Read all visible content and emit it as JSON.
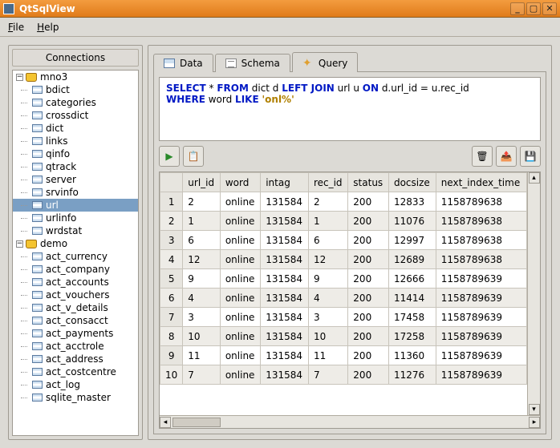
{
  "window": {
    "title": "QtSqlView"
  },
  "menu": {
    "file": "File",
    "help": "Help"
  },
  "connections": {
    "header": "Connections",
    "dbs": [
      {
        "name": "mno3",
        "tables": [
          "bdict",
          "categories",
          "crossdict",
          "dict",
          "links",
          "qinfo",
          "qtrack",
          "server",
          "srvinfo",
          "url",
          "urlinfo",
          "wrdstat"
        ],
        "selected": "url"
      },
      {
        "name": "demo",
        "tables": [
          "act_currency",
          "act_company",
          "act_accounts",
          "act_vouchers",
          "act_v_details",
          "act_consacct",
          "act_payments",
          "act_acctrole",
          "act_address",
          "act_costcentre",
          "act_log",
          "sqlite_master"
        ]
      }
    ]
  },
  "tabs": {
    "data": "Data",
    "schema": "Schema",
    "query": "Query",
    "active": "query"
  },
  "query": {
    "sql_parts": [
      {
        "t": "kw",
        "v": "SELECT"
      },
      {
        "t": "p",
        "v": " * "
      },
      {
        "t": "kw",
        "v": "FROM"
      },
      {
        "t": "p",
        "v": " dict d "
      },
      {
        "t": "kw",
        "v": "LEFT JOIN"
      },
      {
        "t": "p",
        "v": " url u "
      },
      {
        "t": "kw",
        "v": "ON"
      },
      {
        "t": "p",
        "v": " d.url_id = u.rec_id"
      },
      {
        "t": "br"
      },
      {
        "t": "p",
        "v": " "
      },
      {
        "t": "kw",
        "v": "WHERE"
      },
      {
        "t": "p",
        "v": " word "
      },
      {
        "t": "kw",
        "v": "LIKE"
      },
      {
        "t": "p",
        "v": " "
      },
      {
        "t": "str",
        "v": "'onl%'"
      }
    ]
  },
  "toolbar": {
    "run_icon": "▶",
    "run_color": "#2a8a2a",
    "copy_icon": "📋",
    "delete_icon": "🗑",
    "delete_color": "#2a7ac0",
    "export_icon": "📤",
    "export_color": "#d09020",
    "save_icon": "💾",
    "save_color": "#3a6aa0"
  },
  "grid": {
    "columns": [
      "url_id",
      "word",
      "intag",
      "rec_id",
      "status",
      "docsize",
      "next_index_time"
    ],
    "rows": [
      [
        "1",
        "2",
        "online",
        "131584",
        "2",
        "200",
        "12833",
        "1158789638"
      ],
      [
        "2",
        "1",
        "online",
        "131584",
        "1",
        "200",
        "11076",
        "1158789638"
      ],
      [
        "3",
        "6",
        "online",
        "131584",
        "6",
        "200",
        "12997",
        "1158789638"
      ],
      [
        "4",
        "12",
        "online",
        "131584",
        "12",
        "200",
        "12689",
        "1158789638"
      ],
      [
        "5",
        "9",
        "online",
        "131584",
        "9",
        "200",
        "12666",
        "1158789639"
      ],
      [
        "6",
        "4",
        "online",
        "131584",
        "4",
        "200",
        "11414",
        "1158789639"
      ],
      [
        "7",
        "3",
        "online",
        "131584",
        "3",
        "200",
        "17458",
        "1158789639"
      ],
      [
        "8",
        "10",
        "online",
        "131584",
        "10",
        "200",
        "17258",
        "1158789639"
      ],
      [
        "9",
        "11",
        "online",
        "131584",
        "11",
        "200",
        "11360",
        "1158789639"
      ],
      [
        "10",
        "7",
        "online",
        "131584",
        "7",
        "200",
        "11276",
        "1158789639"
      ]
    ],
    "header_bg": "#e7e5df",
    "row_alt_bg": "#eeece7"
  }
}
